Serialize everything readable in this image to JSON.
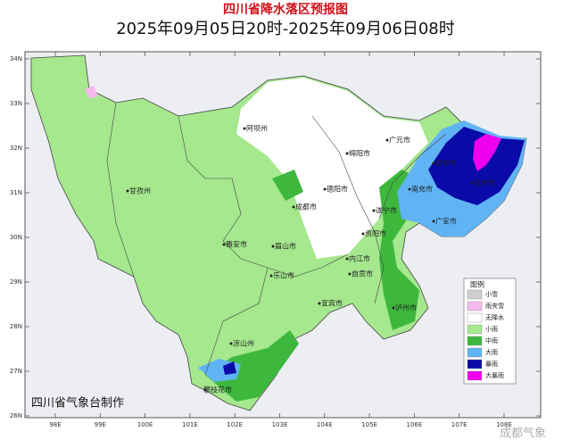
{
  "header": {
    "title": "四川省降水落区预报图",
    "subtitle": "2025年09月05日20时-2025年09月06日08时"
  },
  "map": {
    "lat_labels": [
      "34N",
      "33N",
      "32N",
      "31N",
      "30N",
      "29N",
      "28N",
      "27N",
      "26N"
    ],
    "lon_labels": [
      "98E",
      "99E",
      "100E",
      "101E",
      "102E",
      "103E",
      "104E",
      "105E",
      "106E",
      "107E",
      "108E"
    ],
    "cities": [
      "阿坝州",
      "绵阳市",
      "广元市",
      "巴中市",
      "达州市",
      "甘孜州",
      "成都市",
      "德阳市",
      "遂宁市",
      "南充市",
      "广安市",
      "雅安市",
      "眉山市",
      "资阳市",
      "乐山市",
      "内江市",
      "自贡市",
      "宜宾市",
      "泸州市",
      "凉山州",
      "攀枝花市"
    ]
  },
  "legend": {
    "title": "图例",
    "items": [
      {
        "label": "小雪",
        "color": "#cfcfcf"
      },
      {
        "label": "雨夹雪",
        "color": "#f5b8ef"
      },
      {
        "label": "无降水",
        "color": "#ffffff"
      },
      {
        "label": "小雨",
        "color": "#a5e88e"
      },
      {
        "label": "中雨",
        "color": "#3db83d"
      },
      {
        "label": "大雨",
        "color": "#60b4f5"
      },
      {
        "label": "暴雨",
        "color": "#0a0aa8"
      },
      {
        "label": "大暴雨",
        "color": "#f000f0"
      }
    ]
  },
  "footer": "四川省气象台制作",
  "watermark": "成都气象"
}
